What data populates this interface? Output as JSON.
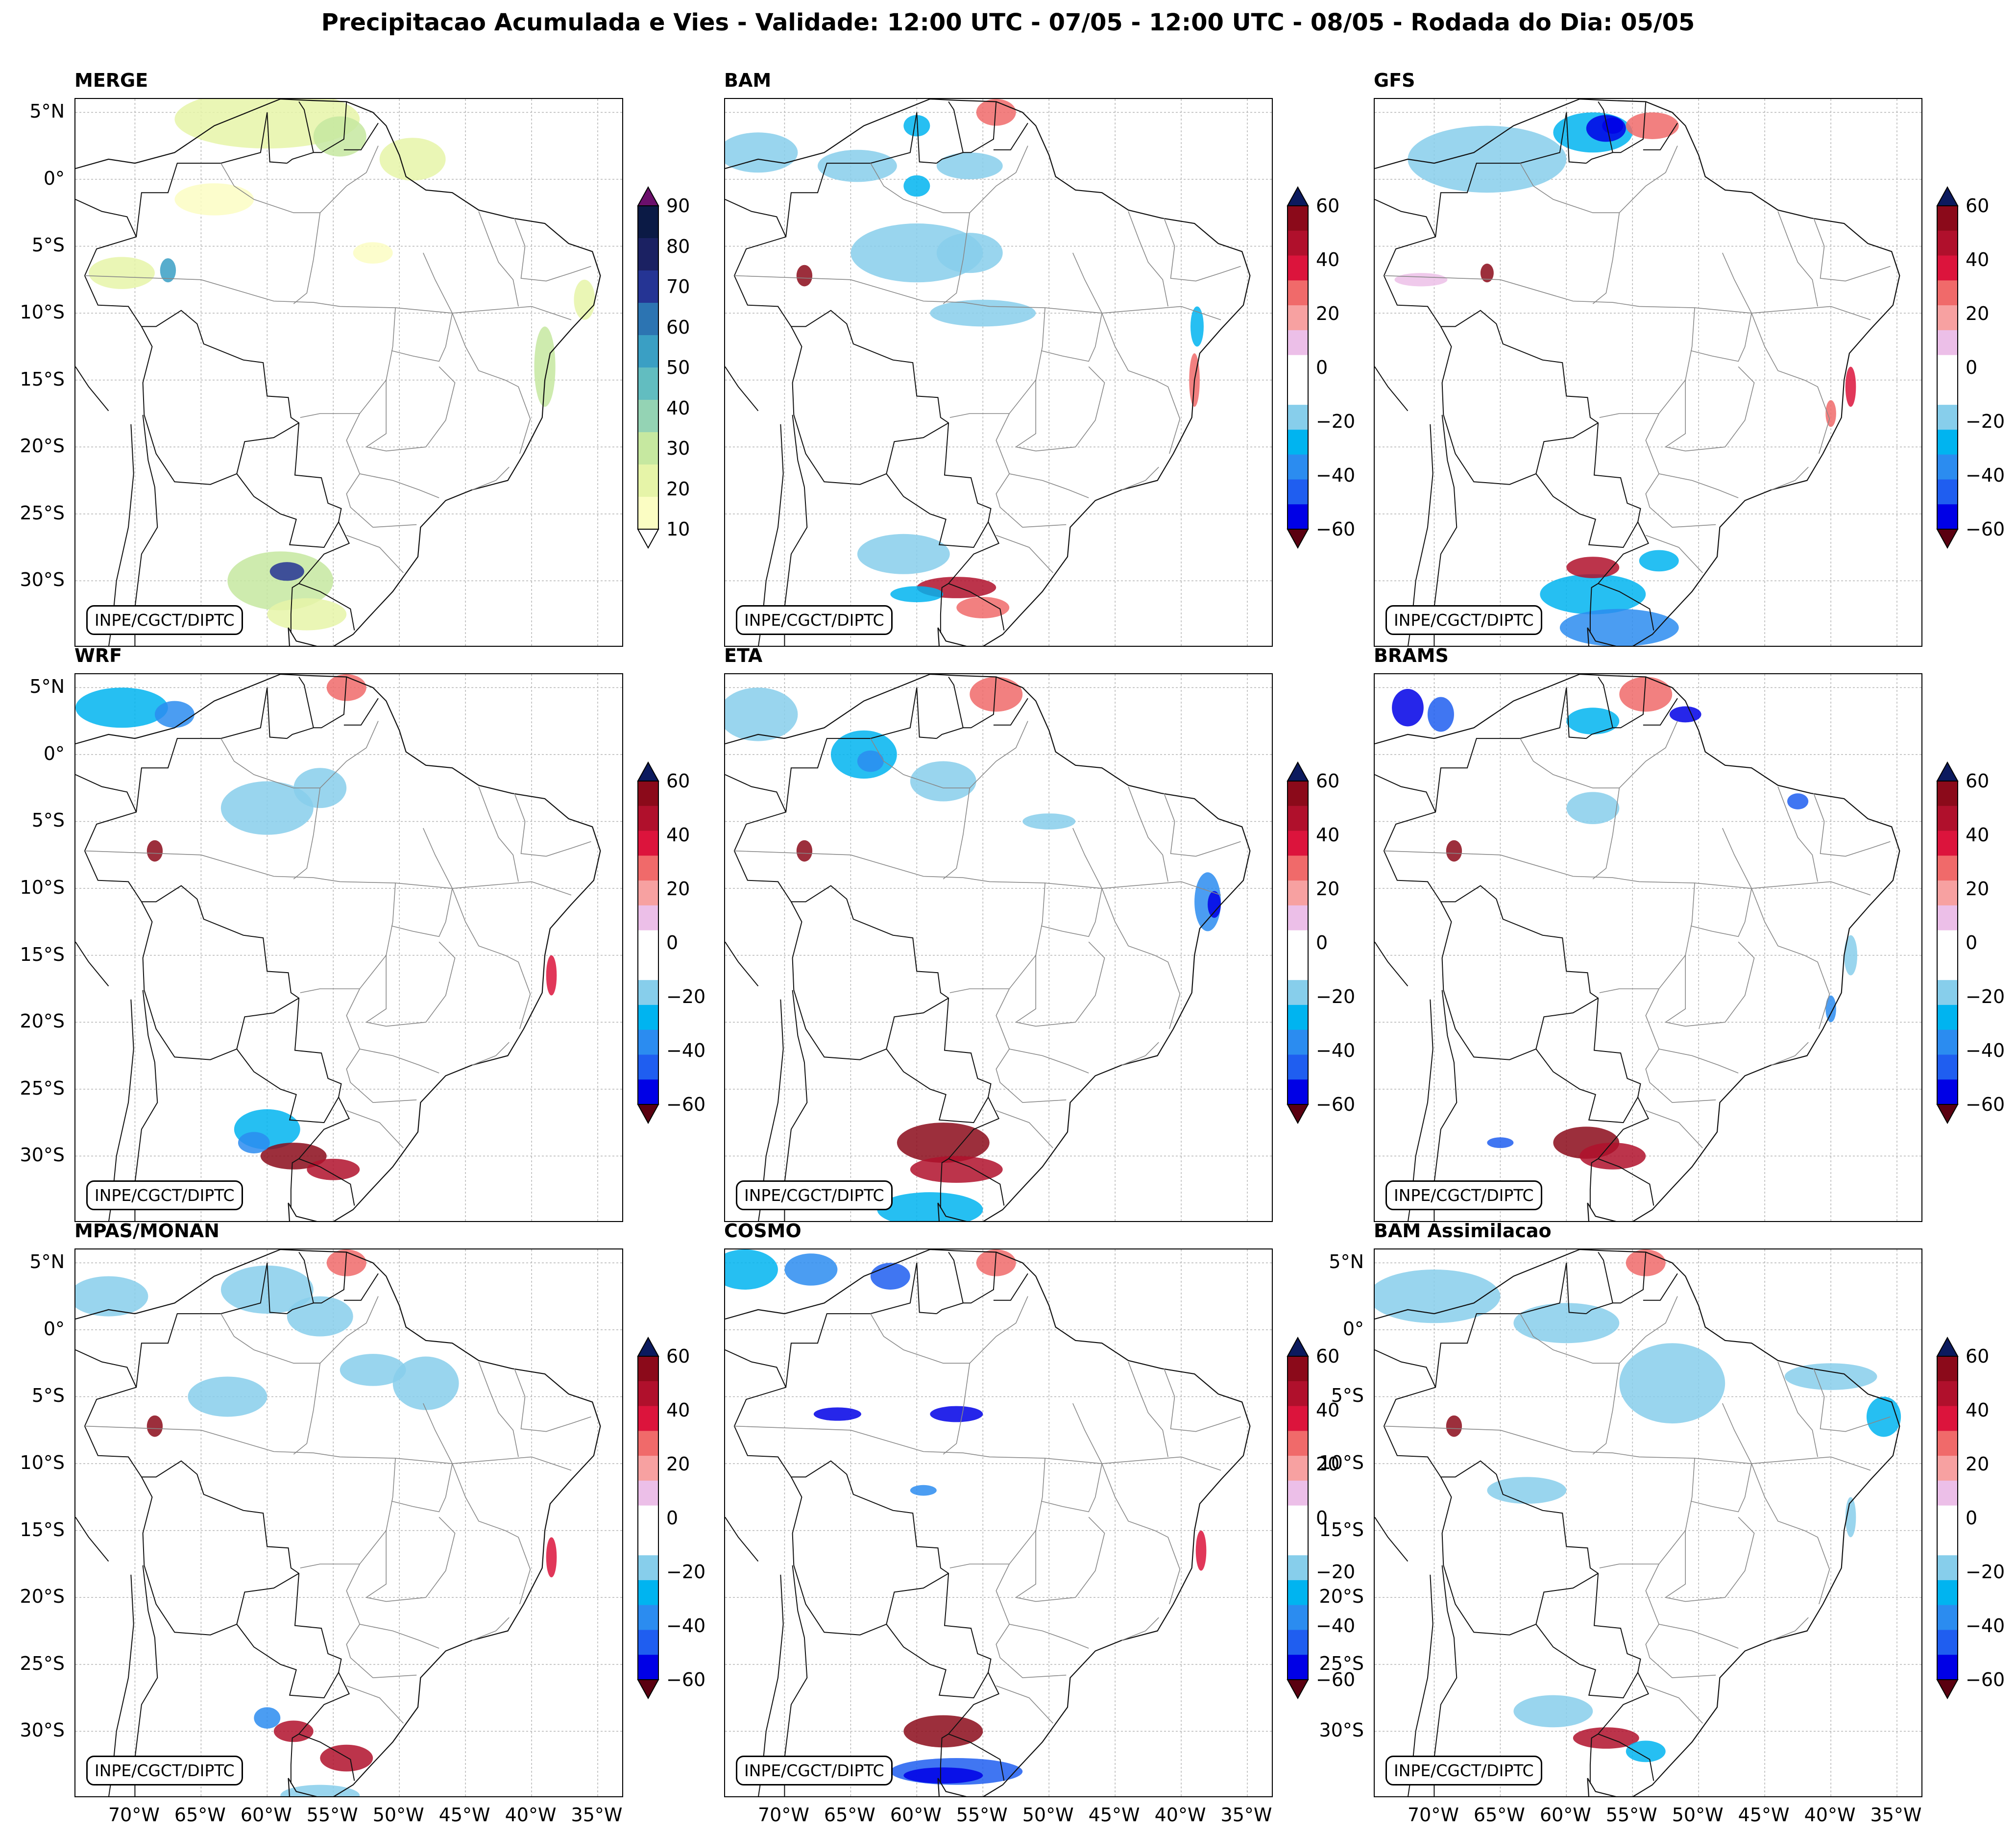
{
  "header": {
    "title": "Precipitacao Acumulada e Vies - Validade: 12:00 UTC - 07/05 - 12:00 UTC - 08/05 - Rodada do Dia: 05/05"
  },
  "credit": "INPE/CGCT/DIPTC",
  "lat_labels": [
    "5°N",
    "0°",
    "5°S",
    "10°S",
    "15°S",
    "20°S",
    "25°S",
    "30°S"
  ],
  "lon_labels": [
    "70°W",
    "65°W",
    "60°W",
    "55°W",
    "50°W",
    "45°W",
    "40°W",
    "35°W"
  ],
  "panels": [
    {
      "name": "MERGE",
      "type": "precip"
    },
    {
      "name": "BAM",
      "type": "bias"
    },
    {
      "name": "GFS",
      "type": "bias"
    },
    {
      "name": "WRF",
      "type": "bias"
    },
    {
      "name": "ETA",
      "type": "bias"
    },
    {
      "name": "BRAMS",
      "type": "bias"
    },
    {
      "name": "MPAS/MONAN",
      "type": "bias"
    },
    {
      "name": "COSMO",
      "type": "bias"
    },
    {
      "name": "BAM Assimilacao",
      "type": "bias"
    }
  ],
  "colorbars": {
    "precip": {
      "ticks": [
        "90",
        "80",
        "70",
        "60",
        "50",
        "40",
        "30",
        "20",
        "10"
      ],
      "colors": [
        "#fbfdc3",
        "#e6f4a8",
        "#c6e8a0",
        "#94d3b4",
        "#62bdc0",
        "#3a9fc4",
        "#2c74b2",
        "#253494",
        "#1b2162",
        "#0b1a45"
      ],
      "over_color": "#6b0f6b",
      "under_color": "#ffffff"
    },
    "bias": {
      "ticks": [
        "60",
        "40",
        "20",
        "0",
        "−20",
        "−40",
        "−60"
      ],
      "colors": [
        "#0000e6",
        "#1f5ef0",
        "#2b8cf0",
        "#00b4f0",
        "#87ceeb",
        "#ffffff",
        "#ffffff",
        "#ecbfe8",
        "#f7a1a1",
        "#f06a6a",
        "#dc143c",
        "#b0102c",
        "#8b0a1a"
      ],
      "over_color": "#0b1a5e",
      "under_color": "#5a0010"
    }
  }
}
